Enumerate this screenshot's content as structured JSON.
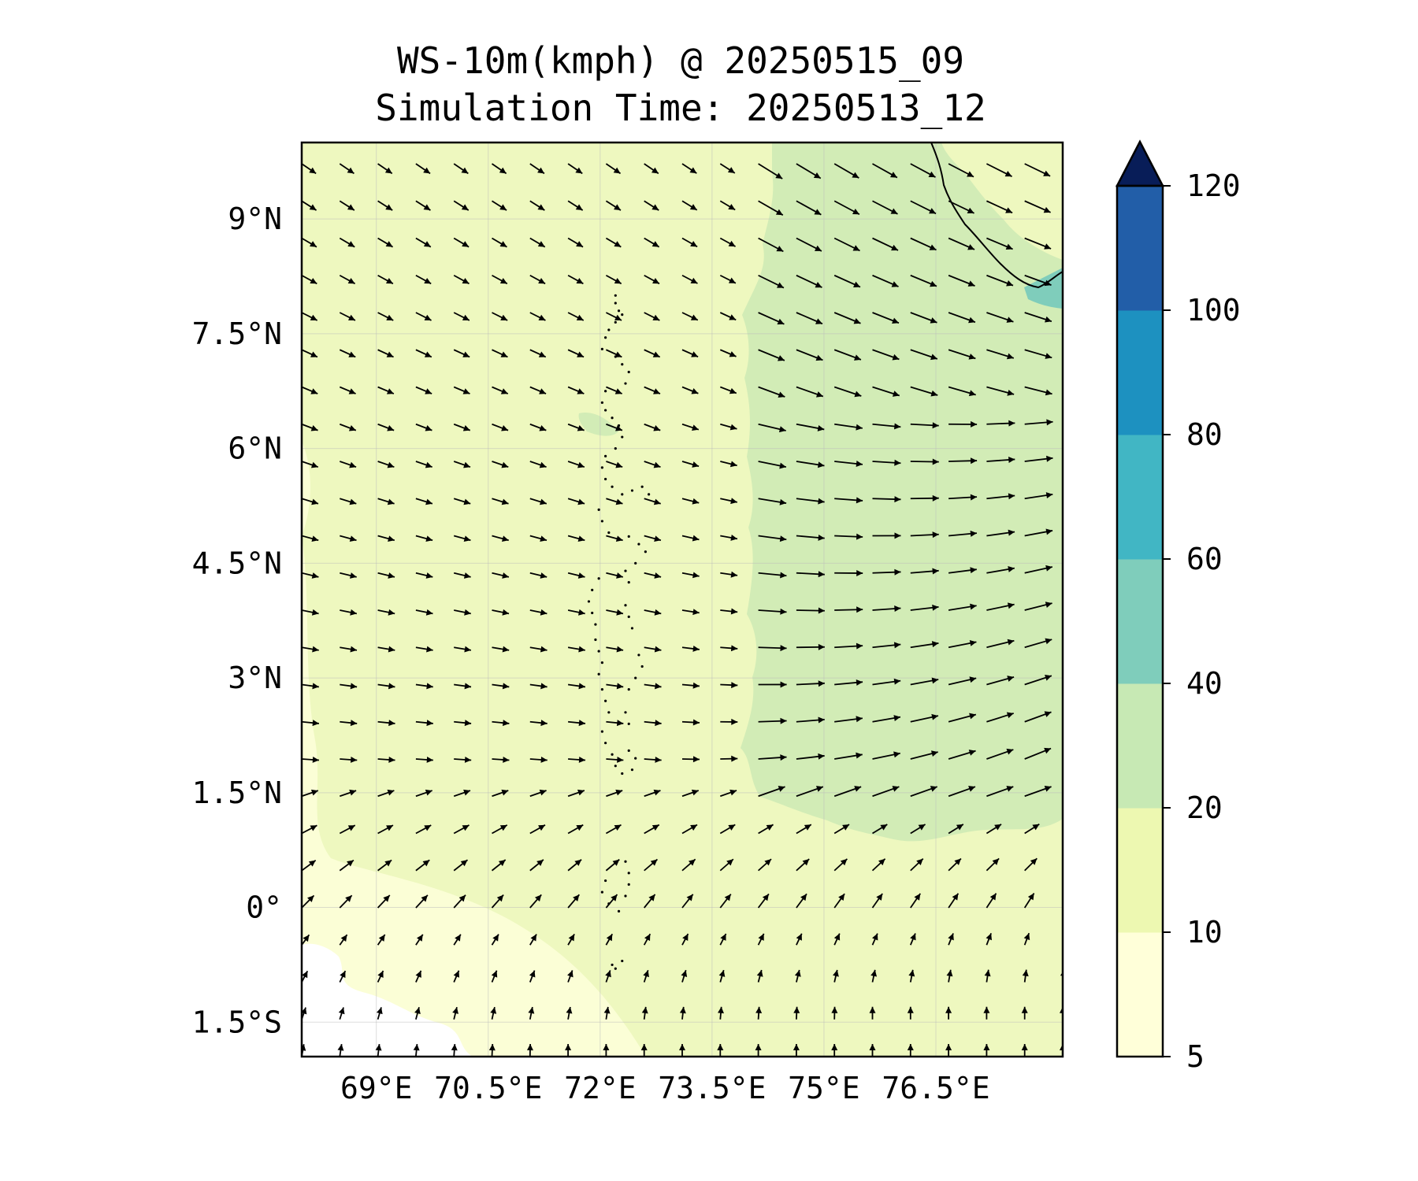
{
  "title": "WS-10m(kmph) @ 20250515_09",
  "subtitle": "Simulation Time: 20250513_12",
  "map": {
    "lon_range": [
      68.0,
      78.2
    ],
    "lat_range": [
      -1.95,
      10.0
    ],
    "lon_ticks": [
      {
        "value": 69.0,
        "label": "69°E"
      },
      {
        "value": 70.5,
        "label": "70.5°E"
      },
      {
        "value": 72.0,
        "label": "72°E"
      },
      {
        "value": 73.5,
        "label": "73.5°E"
      },
      {
        "value": 75.0,
        "label": "75°E"
      },
      {
        "value": 76.5,
        "label": "76.5°E"
      }
    ],
    "lat_ticks": [
      {
        "value": 9.0,
        "label": "9°N"
      },
      {
        "value": 7.5,
        "label": "7.5°N"
      },
      {
        "value": 6.0,
        "label": "6°N"
      },
      {
        "value": 4.5,
        "label": "4.5°N"
      },
      {
        "value": 3.0,
        "label": "3°N"
      },
      {
        "value": 1.5,
        "label": "1.5°N"
      },
      {
        "value": 0.0,
        "label": "0°"
      },
      {
        "value": -1.5,
        "label": "1.5°S"
      }
    ],
    "gridlines": true
  },
  "colorbar": {
    "levels": [
      5,
      10,
      20,
      40,
      60,
      80,
      100,
      120
    ],
    "labels": [
      "5",
      "10",
      "20",
      "40",
      "60",
      "80",
      "100",
      "120"
    ],
    "colors": [
      "#ffffd9",
      "#edf8b1",
      "#c7e9b4",
      "#7fcdbb",
      "#41b6c4",
      "#1d91c0",
      "#225ea8",
      "#0c2c84"
    ],
    "extend_color": "#081d58",
    "extend": "max"
  },
  "field_colors": {
    "lt10": "#fbfed6",
    "c10_20": "#eef8bf",
    "c20_40": "#d2ecb6",
    "c40_60": "#7fcdbb",
    "below5": "#ffffff"
  }
}
